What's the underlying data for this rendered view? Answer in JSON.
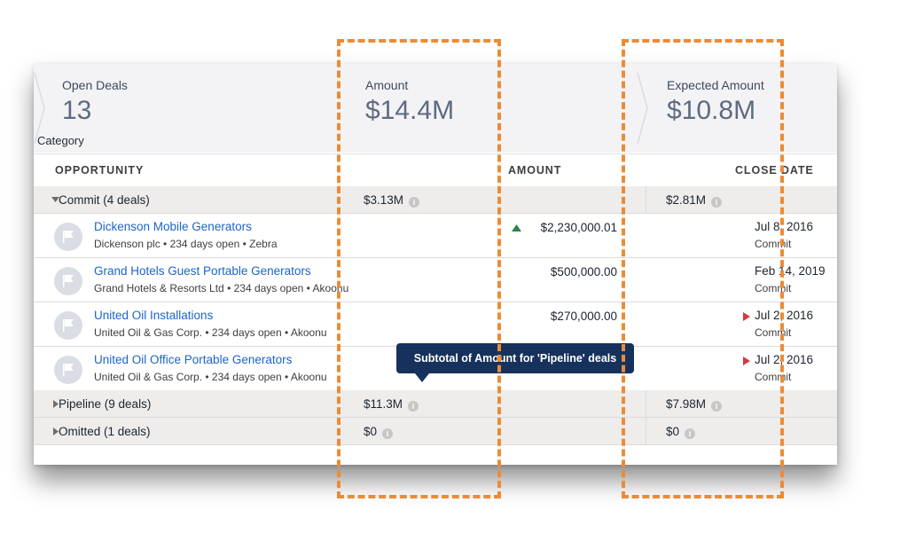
{
  "kpis": {
    "open_deals": {
      "label": "Open Deals",
      "value": "13"
    },
    "amount": {
      "label": "Amount",
      "value": "$14.4M"
    },
    "expected_amount": {
      "label": "Expected Amount",
      "value": "$10.8M"
    }
  },
  "category_label": "Category",
  "columns": {
    "opportunity": "OPPORTUNITY",
    "amount": "AMOUNT",
    "close_date": "CLOSE DATE"
  },
  "groups": [
    {
      "label": "Commit (4 deals)",
      "amount": "$3.13M",
      "expected": "$2.81M",
      "expanded": true
    },
    {
      "label": "Pipeline (9 deals)",
      "amount": "$11.3M",
      "expected": "$7.98M",
      "expanded": false
    },
    {
      "label": "Omitted (1 deals)",
      "amount": "$0",
      "expected": "$0",
      "expanded": false
    }
  ],
  "rows": [
    {
      "name": "Dickenson Mobile Generators",
      "meta": "Dickenson plc  •  234 days open  •  Zebra",
      "amount": "$2,230,000.01",
      "close_date": "Jul 8, 2016",
      "stage": "Commit"
    },
    {
      "name": "Grand Hotels Guest Portable Generators",
      "meta": "Grand Hotels & Resorts Ltd  •  234 days open  •  Akoonu",
      "amount": "$500,000.00",
      "close_date": "Feb 14, 2019",
      "stage": "Commit"
    },
    {
      "name": "United Oil Installations",
      "meta": "United Oil & Gas Corp.  •  234 days open  •  Akoonu",
      "amount": "$270,000.00",
      "close_date": "Jul 2, 2016",
      "stage": "Commit"
    },
    {
      "name": "United Oil Office Portable Generators",
      "meta": "United Oil & Gas Corp.  •  234 days open  •  Akoonu",
      "amount": "",
      "close_date": "Jul 2, 2016",
      "stage": "Commit"
    }
  ],
  "tooltip": "Subtotal of Amount for 'Pipeline' deals",
  "colors": {
    "accent_dash": "#ec8b36",
    "link": "#1b64c9",
    "tooltip_bg": "#16325c",
    "up_arrow": "#2e844a",
    "flag": "#d9363e"
  },
  "icons": [
    "chevron-right-icon",
    "caret-down-icon",
    "caret-right-icon",
    "info-icon",
    "opportunity-flag-icon",
    "trend-up-icon",
    "overdue-flag-icon"
  ]
}
